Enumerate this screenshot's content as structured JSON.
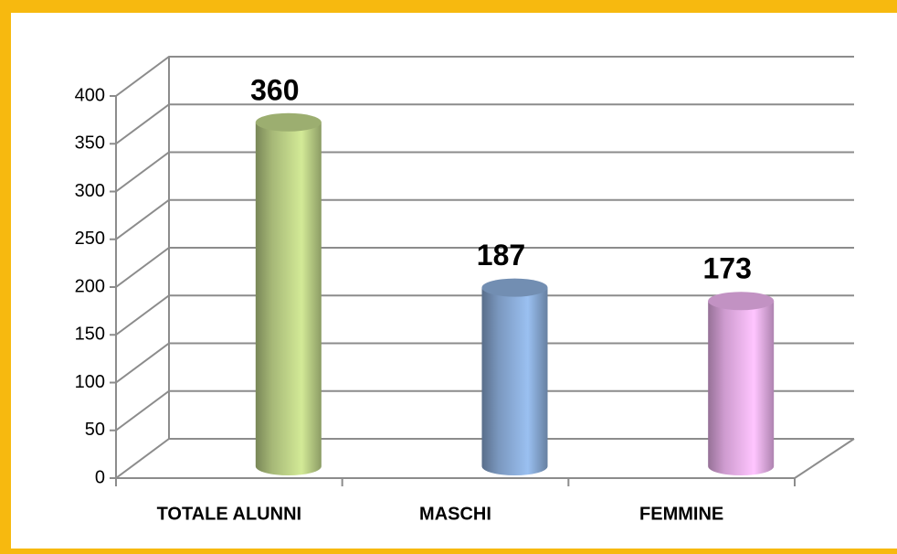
{
  "chart_data": {
    "type": "bar",
    "categories": [
      "TOTALE ALUNNI",
      "MASCHI",
      "FEMMINE"
    ],
    "values": [
      360,
      187,
      173
    ],
    "colors": [
      "#c3d98c",
      "#8fb2df",
      "#f2b6f4"
    ],
    "ylim": [
      0,
      400
    ],
    "yticks": [
      0,
      50,
      100,
      150,
      200,
      250,
      300,
      350,
      400
    ],
    "grid": true
  }
}
